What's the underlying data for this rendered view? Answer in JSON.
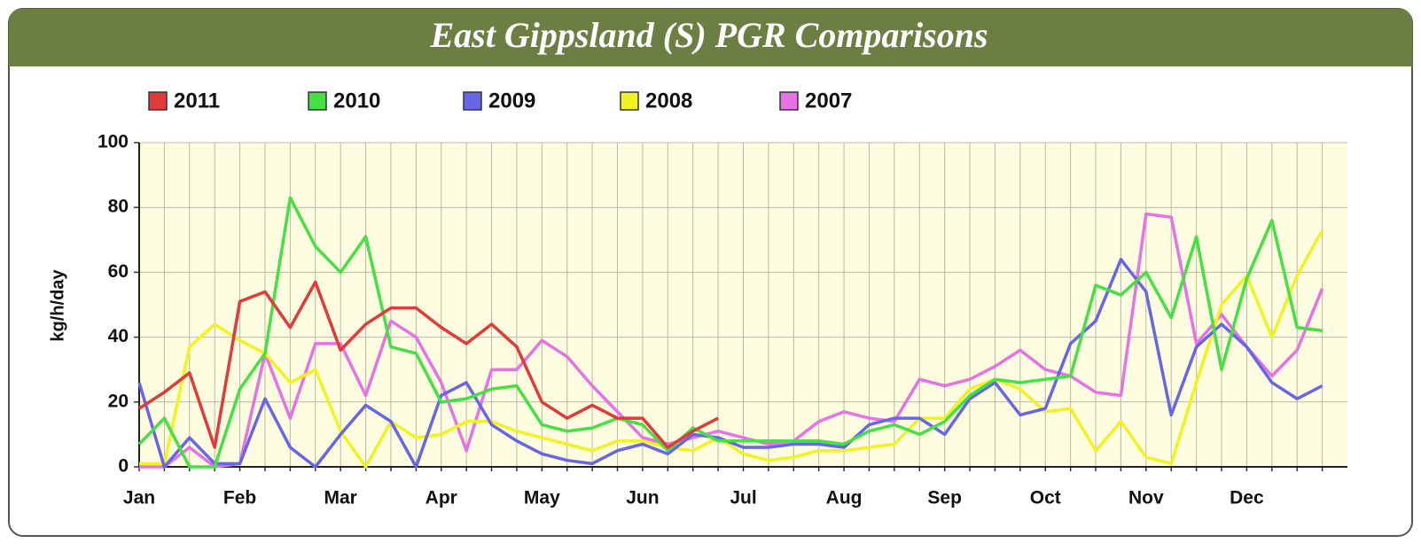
{
  "chart_data": {
    "type": "line",
    "title": "East Gippsland (S) PGR Comparisons",
    "ylabel": "kg/h/day",
    "categories": [
      "Jan",
      null,
      null,
      null,
      "Feb",
      null,
      null,
      null,
      "Mar",
      null,
      null,
      null,
      "Apr",
      null,
      null,
      null,
      "May",
      null,
      null,
      null,
      "Jun",
      null,
      null,
      null,
      "Jul",
      null,
      null,
      null,
      "Aug",
      null,
      null,
      null,
      "Sep",
      null,
      null,
      null,
      "Oct",
      null,
      null,
      null,
      "Nov",
      null,
      null,
      null,
      "Dec",
      null,
      null,
      null
    ],
    "ylim": [
      0,
      100
    ],
    "yticks": [
      0,
      20,
      40,
      60,
      80,
      100
    ],
    "grid": true,
    "legend": "top",
    "series": [
      {
        "name": "2011",
        "color": "#e23a3a",
        "values": [
          18,
          23,
          29,
          6,
          51,
          54,
          43,
          57,
          36,
          44,
          49,
          49,
          43,
          38,
          44,
          37,
          20,
          15,
          19,
          15,
          15,
          6,
          11,
          15,
          null,
          null,
          null,
          null,
          null,
          null,
          null,
          null,
          null,
          null,
          null,
          null,
          null,
          null,
          null,
          null,
          null,
          null,
          null,
          null,
          null,
          null,
          null,
          null
        ]
      },
      {
        "name": "2010",
        "color": "#44e044",
        "values": [
          7,
          15,
          0,
          0,
          24,
          35,
          83,
          68,
          60,
          71,
          37,
          35,
          20,
          21,
          24,
          25,
          13,
          11,
          12,
          15,
          13,
          5,
          12,
          8,
          8,
          8,
          8,
          8,
          7,
          11,
          13,
          10,
          14,
          22,
          27,
          26,
          27,
          28,
          56,
          53,
          60,
          46,
          71,
          30,
          58,
          76,
          43,
          42
        ]
      },
      {
        "name": "2009",
        "color": "#6666e6",
        "values": [
          26,
          0,
          9,
          1,
          1,
          21,
          6,
          0,
          10,
          19,
          14,
          0,
          22,
          26,
          13,
          8,
          4,
          2,
          1,
          5,
          7,
          4,
          10,
          9,
          6,
          6,
          7,
          7,
          6,
          13,
          15,
          15,
          10,
          21,
          26,
          16,
          18,
          38,
          45,
          64,
          54,
          16,
          37,
          44,
          37,
          26,
          21,
          25
        ]
      },
      {
        "name": "2008",
        "color": "#f2f222",
        "values": [
          1,
          1,
          37,
          44,
          39,
          35,
          26,
          30,
          11,
          0,
          14,
          9,
          10,
          14,
          14,
          11,
          9,
          7,
          5,
          8,
          8,
          6,
          5,
          9,
          4,
          2,
          3,
          5,
          5,
          6,
          7,
          15,
          15,
          24,
          27,
          24,
          17,
          18,
          5,
          14,
          3,
          1,
          26,
          50,
          59,
          40,
          59,
          73
        ]
      },
      {
        "name": "2007",
        "color": "#e672e6",
        "values": [
          0,
          0,
          6,
          0,
          1,
          35,
          15,
          38,
          38,
          22,
          45,
          40,
          26,
          5,
          30,
          30,
          39,
          34,
          25,
          17,
          9,
          7,
          9,
          11,
          9,
          7,
          8,
          14,
          17,
          15,
          14,
          27,
          25,
          27,
          31,
          36,
          30,
          28,
          23,
          22,
          78,
          77,
          38,
          47,
          37,
          28,
          36,
          55
        ]
      }
    ]
  }
}
